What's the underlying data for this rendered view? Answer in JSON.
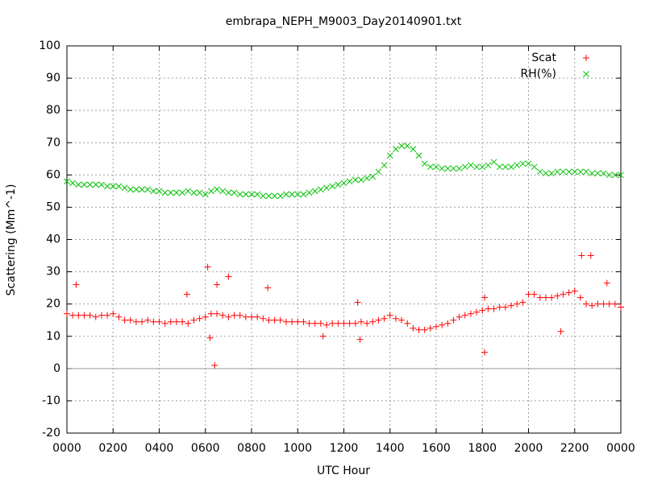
{
  "chart_data": {
    "type": "scatter",
    "title": "embrapa_NEPH_M9003_Day20140901.txt",
    "xlabel": "UTC Hour",
    "ylabel": "Scattering (Mm^-1)",
    "xlim": [
      0,
      24
    ],
    "xticks": [
      {
        "value": 0,
        "label": "0000"
      },
      {
        "value": 2,
        "label": "0200"
      },
      {
        "value": 4,
        "label": "0400"
      },
      {
        "value": 6,
        "label": "0600"
      },
      {
        "value": 8,
        "label": "0800"
      },
      {
        "value": 10,
        "label": "1000"
      },
      {
        "value": 12,
        "label": "1200"
      },
      {
        "value": 14,
        "label": "1400"
      },
      {
        "value": 16,
        "label": "1600"
      },
      {
        "value": 18,
        "label": "1800"
      },
      {
        "value": 20,
        "label": "2000"
      },
      {
        "value": 22,
        "label": "2200"
      },
      {
        "value": 24,
        "label": "0000"
      }
    ],
    "ylim": [
      -20,
      100
    ],
    "yticks": [
      -20,
      -10,
      0,
      10,
      20,
      30,
      40,
      50,
      60,
      70,
      80,
      90,
      100
    ],
    "grid": true,
    "zeroaxis": true,
    "legend": "top-right",
    "series": [
      {
        "name": "Scat",
        "color": "#ff0000",
        "marker": "plus",
        "x": [
          0,
          0.25,
          0.5,
          0.75,
          1,
          1.25,
          1.5,
          1.75,
          2,
          2.25,
          2.5,
          2.75,
          3,
          3.25,
          3.5,
          3.75,
          4,
          4.25,
          4.5,
          4.75,
          5,
          5.25,
          5.5,
          5.75,
          6,
          6.25,
          6.5,
          6.75,
          7,
          7.25,
          7.5,
          7.75,
          8,
          8.25,
          8.5,
          8.75,
          9,
          9.25,
          9.5,
          9.75,
          10,
          10.25,
          10.5,
          10.75,
          11,
          11.25,
          11.5,
          11.75,
          12,
          12.25,
          12.5,
          12.75,
          13,
          13.25,
          13.5,
          13.75,
          14,
          14.25,
          14.5,
          14.75,
          15,
          15.25,
          15.5,
          15.75,
          16,
          16.25,
          16.5,
          16.75,
          17,
          17.25,
          17.5,
          17.75,
          18,
          18.25,
          18.5,
          18.75,
          19,
          19.25,
          19.5,
          19.75,
          20,
          20.25,
          20.5,
          20.75,
          21,
          21.25,
          21.5,
          21.75,
          22,
          22.25,
          22.5,
          22.75,
          23,
          23.25,
          23.5,
          23.75,
          24,
          0.4,
          5.2,
          6.1,
          6.2,
          6.4,
          6.5,
          7,
          8.7,
          11.1,
          12.6,
          12.7,
          18.1,
          18.1,
          21.4,
          22.3,
          22.7,
          23.4
        ],
        "values": [
          17,
          16.5,
          16.5,
          16.5,
          16.5,
          16,
          16.5,
          16.5,
          17,
          16,
          15,
          15,
          14.5,
          14.5,
          15,
          14.5,
          14.5,
          14,
          14.5,
          14.5,
          14.5,
          14,
          15,
          15.5,
          16,
          17,
          17,
          16.5,
          16,
          16.5,
          16.5,
          16,
          16,
          16,
          15.5,
          15,
          15,
          15,
          14.5,
          14.5,
          14.5,
          14.5,
          14,
          14,
          14,
          13.5,
          14,
          14,
          14,
          14,
          14,
          14.5,
          14,
          14.5,
          15,
          15.5,
          16.5,
          15.5,
          15,
          14,
          12.5,
          12,
          12,
          12.5,
          13,
          13.5,
          14,
          15,
          16,
          16.5,
          17,
          17.5,
          18,
          18.5,
          18.5,
          19,
          19,
          19.5,
          20,
          20.5,
          23,
          23,
          22,
          22,
          22,
          22.5,
          23,
          23.5,
          24,
          22,
          20,
          19.5,
          20,
          20,
          20,
          20,
          19,
          26,
          23,
          31.5,
          9.5,
          1,
          26,
          28.5,
          25,
          10,
          20.5,
          9,
          5,
          22,
          11.5,
          35,
          35,
          26.5
        ]
      },
      {
        "name": "RH(%)",
        "color": "#00c000",
        "marker": "cross",
        "x": [
          0,
          0.25,
          0.5,
          0.75,
          1,
          1.25,
          1.5,
          1.75,
          2,
          2.25,
          2.5,
          2.75,
          3,
          3.25,
          3.5,
          3.75,
          4,
          4.25,
          4.5,
          4.75,
          5,
          5.25,
          5.5,
          5.75,
          6,
          6.25,
          6.5,
          6.75,
          7,
          7.25,
          7.5,
          7.75,
          8,
          8.25,
          8.5,
          8.75,
          9,
          9.25,
          9.5,
          9.75,
          10,
          10.25,
          10.5,
          10.75,
          11,
          11.25,
          11.5,
          11.75,
          12,
          12.25,
          12.5,
          12.75,
          13,
          13.25,
          13.5,
          13.75,
          14,
          14.25,
          14.5,
          14.75,
          15,
          15.25,
          15.5,
          15.75,
          16,
          16.25,
          16.5,
          16.75,
          17,
          17.25,
          17.5,
          17.75,
          18,
          18.25,
          18.5,
          18.75,
          19,
          19.25,
          19.5,
          19.75,
          20,
          20.25,
          20.5,
          20.75,
          21,
          21.25,
          21.5,
          21.75,
          22,
          22.25,
          22.5,
          22.75,
          23,
          23.25,
          23.5,
          23.75,
          24
        ],
        "values": [
          58,
          57.5,
          57,
          57,
          57,
          57,
          57,
          56.5,
          56.5,
          56.5,
          56,
          55.5,
          55.5,
          55.5,
          55.5,
          55,
          55,
          54.5,
          54.5,
          54.5,
          54.5,
          55,
          54.5,
          54.5,
          54,
          55,
          55.5,
          55,
          54.5,
          54.5,
          54,
          54,
          54,
          54,
          53.5,
          53.5,
          53.5,
          53.5,
          54,
          54,
          54,
          54,
          54.5,
          55,
          55.5,
          56,
          56.5,
          57,
          57.5,
          58,
          58.5,
          58.5,
          59,
          59.5,
          61,
          63,
          66,
          68,
          69,
          69,
          68,
          66,
          63.5,
          62.5,
          62.5,
          62,
          62,
          62,
          62,
          62.5,
          63,
          62.5,
          62.5,
          63,
          64,
          62.5,
          62.5,
          62.5,
          63,
          63.5,
          63.5,
          62.5,
          61,
          60.5,
          60.5,
          61,
          61,
          61,
          61,
          61,
          61,
          60.5,
          60.5,
          60.5,
          60,
          60,
          60
        ]
      }
    ]
  }
}
